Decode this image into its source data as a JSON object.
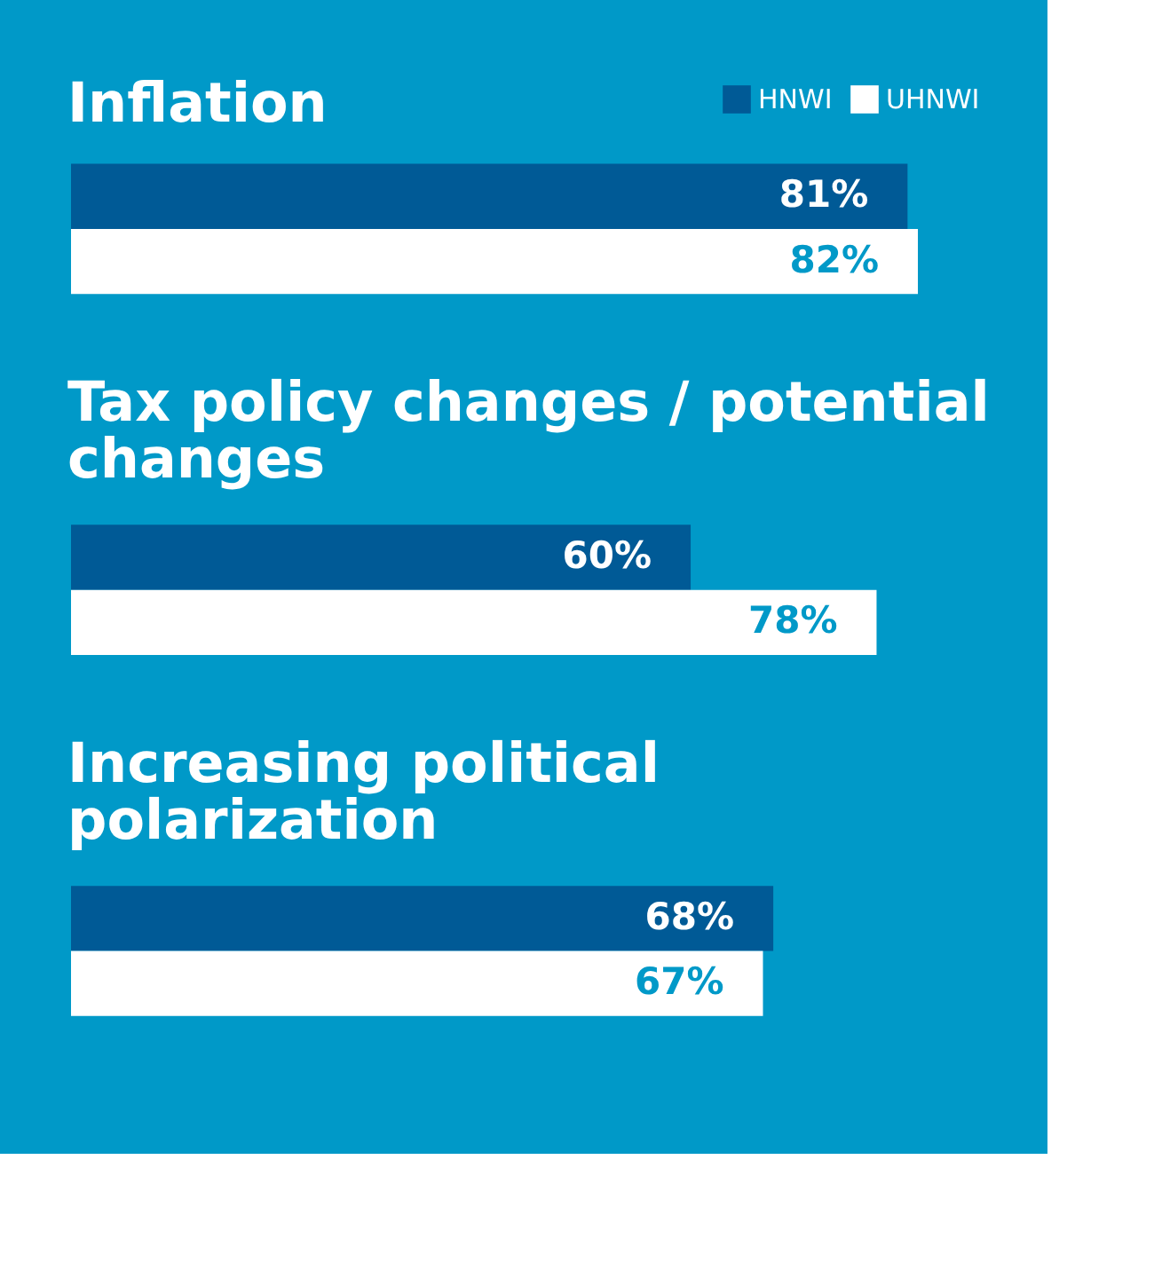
{
  "chart_data": {
    "type": "bar",
    "orientation": "horizontal",
    "legend": "top right",
    "categories": [
      "Inflation",
      "Tax policy changes / potential changes",
      "Increasing political polarization"
    ],
    "series": [
      {
        "name": "HNWI",
        "color": "#005a96",
        "values": [
          81,
          60,
          68
        ],
        "value_labels": [
          "81%",
          "60%",
          "68%"
        ]
      },
      {
        "name": "UHNWI",
        "color": "#ffffff",
        "values": [
          82,
          78,
          67
        ],
        "value_labels": [
          "82%",
          "78%",
          "67%"
        ]
      }
    ]
  }
}
